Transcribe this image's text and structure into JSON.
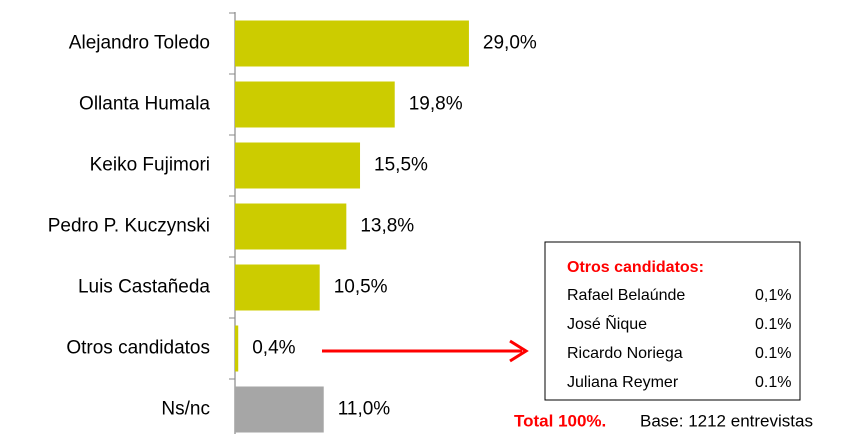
{
  "chart_data": {
    "type": "barh",
    "categories": [
      "Alejandro Toledo",
      "Ollanta Humala",
      "Keiko Fujimori",
      "Pedro P. Kuczynski",
      "Luis Castañeda",
      "Otros candidatos",
      "Ns/nc"
    ],
    "values": [
      29.0,
      19.8,
      15.5,
      13.8,
      10.5,
      0.4,
      11.0
    ],
    "value_labels": [
      "29,0%",
      "19,8%",
      "15,5%",
      "13,8%",
      "10,5%",
      "0,4%",
      "11,0%"
    ],
    "colors": [
      "#cccc00",
      "#cccc00",
      "#cccc00",
      "#cccc00",
      "#cccc00",
      "#cccc00",
      "#a6a6a6"
    ],
    "xlim": [
      0,
      30
    ],
    "inset": {
      "title": "Otros candidatos:",
      "rows": [
        {
          "name": "Rafael Belaúnde",
          "value": "0,1%"
        },
        {
          "name": "José Ñique",
          "value": "0.1%"
        },
        {
          "name": "Ricardo Noriega",
          "value": "0.1%"
        },
        {
          "name": "Juliana Reymer",
          "value": "0.1%"
        }
      ]
    },
    "footer": {
      "total": "Total 100%.",
      "base": "Base:  1212 entrevistas"
    }
  }
}
